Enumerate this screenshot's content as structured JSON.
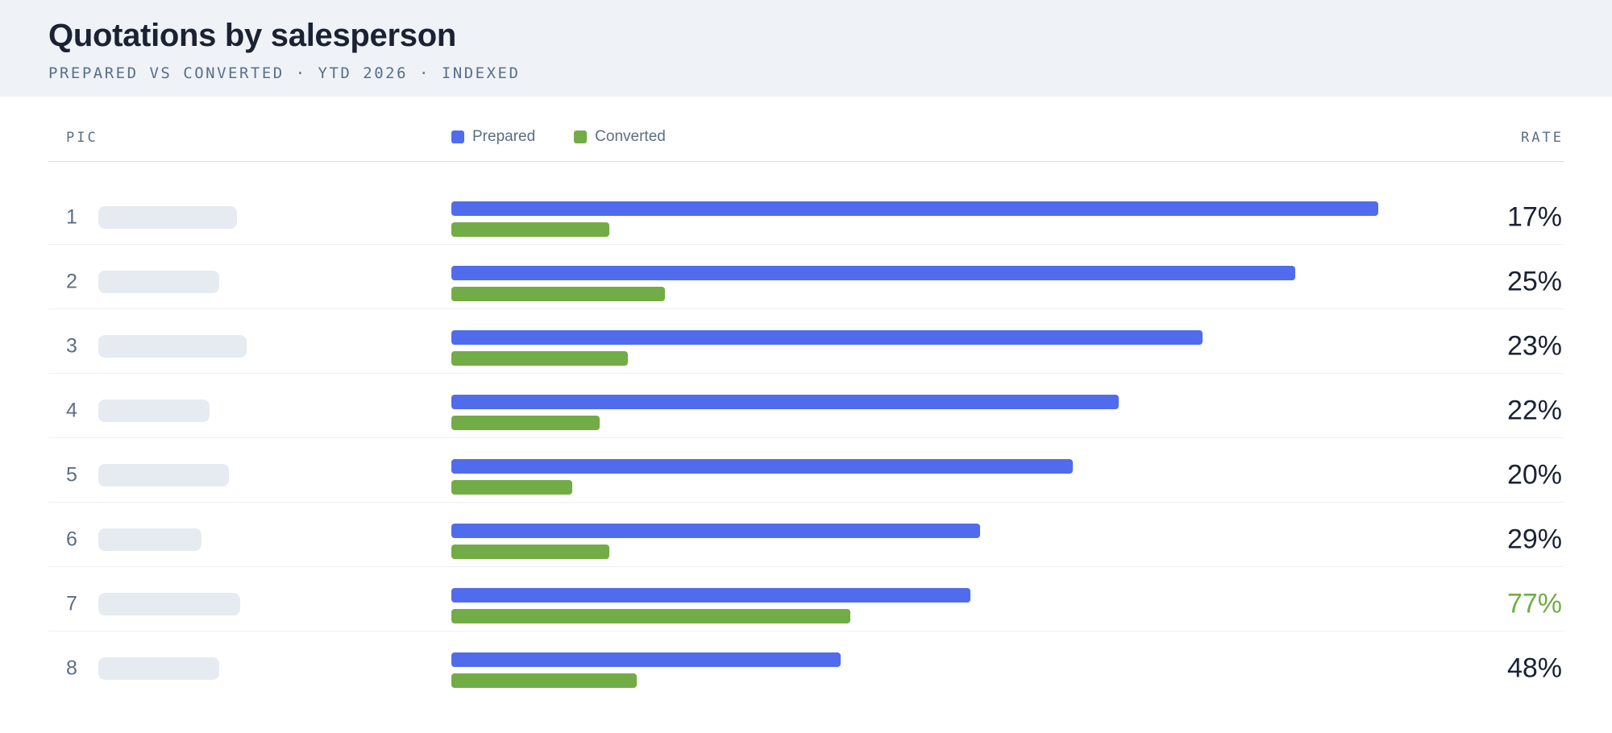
{
  "header": {
    "title": "Quotations by salesperson",
    "subtitle": "PREPARED VS CONVERTED · YTD 2026 · INDEXED"
  },
  "columns": {
    "pic": "PIC",
    "rate": "RATE"
  },
  "colors": {
    "prepared": "#506cec",
    "converted": "#72ac47",
    "highlight_rate": "#72ac47"
  },
  "chart_data": {
    "type": "bar",
    "orientation": "horizontal",
    "title": "Quotations by salesperson",
    "subtitle": "PREPARED VS CONVERTED · YTD 2026 · INDEXED",
    "categories": [
      "1",
      "2",
      "3",
      "4",
      "5",
      "6",
      "7",
      "8"
    ],
    "series": [
      {
        "name": "Prepared",
        "values": [
          100,
          91,
          81,
          72,
          67,
          57,
          56,
          42
        ]
      },
      {
        "name": "Converted",
        "values": [
          17,
          23,
          19,
          16,
          13,
          17,
          43,
          20
        ]
      }
    ],
    "rates": [
      "17%",
      "25%",
      "23%",
      "22%",
      "20%",
      "29%",
      "77%",
      "48%"
    ],
    "highlight_index": 6,
    "xlim": [
      0,
      100
    ],
    "legend": "top-left",
    "grid": false
  }
}
